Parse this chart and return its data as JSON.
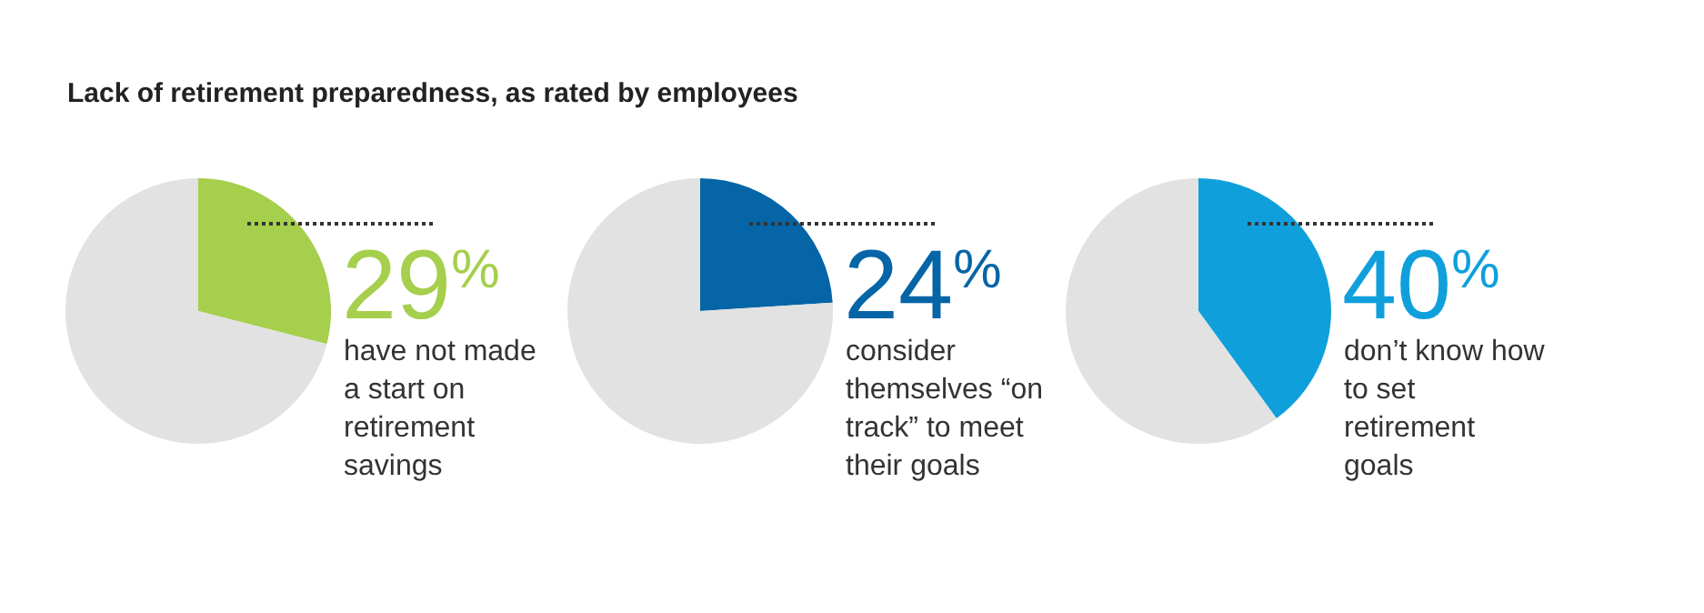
{
  "chart_data": [
    {
      "type": "pie",
      "title": "Lack of retirement preparedness, as rated by employees",
      "categories": [
        null,
        null
      ],
      "values": [
        29,
        71
      ],
      "colors": [
        "#a5cf4c",
        "#e1e2e1"
      ],
      "value_labels": [
        "29%",
        null
      ],
      "annotations": [
        "have not made a start on retirement savings"
      ],
      "legend": false
    },
    {
      "type": "pie",
      "categories": [
        null,
        null
      ],
      "values": [
        24,
        76
      ],
      "colors": [
        "#0565a6",
        "#e1e2e1"
      ],
      "value_labels": [
        "24%",
        null
      ],
      "annotations": [
        "consider themselves “on track” to meet their goals"
      ],
      "legend": false
    },
    {
      "type": "pie",
      "categories": [
        null,
        null
      ],
      "values": [
        40,
        60
      ],
      "colors": [
        "#0fa0dc",
        "#e1e2e1"
      ],
      "value_labels": [
        "40%",
        null
      ],
      "annotations": [
        "don’t know how to set retirement goals"
      ],
      "legend": false
    }
  ]
}
